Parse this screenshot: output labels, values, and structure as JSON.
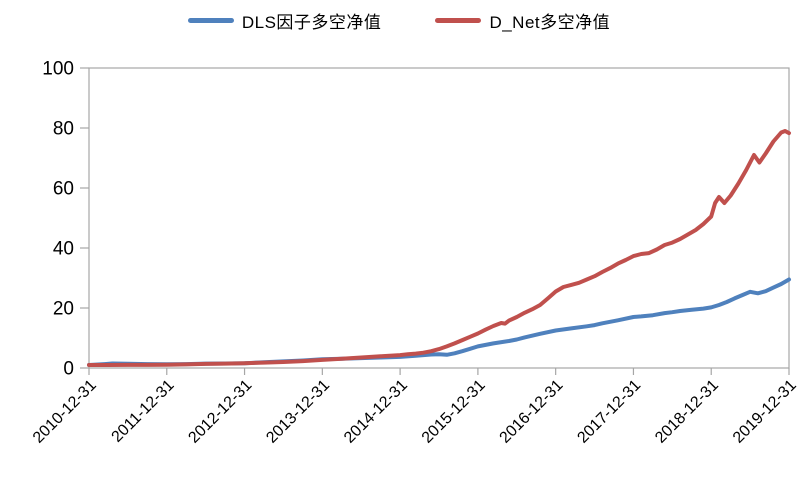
{
  "legend": {
    "items": [
      {
        "label": "DLS因子多空净值",
        "color": "#4F81BD"
      },
      {
        "label": "D_Net多空净值",
        "color": "#C0504D"
      }
    ]
  },
  "colors": {
    "axis": "#A6A6A6",
    "tick_text": "#000000",
    "background": "#FFFFFF"
  },
  "chart_data": {
    "type": "line",
    "title": "",
    "xlabel": "",
    "ylabel": "",
    "grid": false,
    "legend_position": "top-center",
    "ylim": [
      0,
      100
    ],
    "y_ticks": [
      0,
      20,
      40,
      60,
      80,
      100
    ],
    "x_tick_labels": [
      "2010-12-31",
      "2011-12-31",
      "2012-12-31",
      "2013-12-31",
      "2014-12-31",
      "2015-12-31",
      "2016-12-31",
      "2017-12-31",
      "2018-12-31",
      "2019-12-31"
    ],
    "x_unit": "years since 2010-12-31",
    "series": [
      {
        "name": "DLS因子多空净值",
        "color": "#4F81BD",
        "points": [
          [
            0,
            1.0
          ],
          [
            0.2,
            1.3
          ],
          [
            0.3,
            1.5
          ],
          [
            0.5,
            1.4
          ],
          [
            0.75,
            1.3
          ],
          [
            1.0,
            1.25
          ],
          [
            1.25,
            1.3
          ],
          [
            1.5,
            1.45
          ],
          [
            1.75,
            1.5
          ],
          [
            2.0,
            1.6
          ],
          [
            2.25,
            1.9
          ],
          [
            2.5,
            2.2
          ],
          [
            2.75,
            2.5
          ],
          [
            3.0,
            2.9
          ],
          [
            3.25,
            3.1
          ],
          [
            3.5,
            3.3
          ],
          [
            3.75,
            3.5
          ],
          [
            4.0,
            3.7
          ],
          [
            4.2,
            4.1
          ],
          [
            4.4,
            4.5
          ],
          [
            4.5,
            4.6
          ],
          [
            4.6,
            4.4
          ],
          [
            4.7,
            4.9
          ],
          [
            4.8,
            5.6
          ],
          [
            4.9,
            6.4
          ],
          [
            5.0,
            7.2
          ],
          [
            5.2,
            8.2
          ],
          [
            5.4,
            9.0
          ],
          [
            5.5,
            9.5
          ],
          [
            5.6,
            10.2
          ],
          [
            5.8,
            11.4
          ],
          [
            6.0,
            12.5
          ],
          [
            6.2,
            13.2
          ],
          [
            6.4,
            13.9
          ],
          [
            6.5,
            14.3
          ],
          [
            6.6,
            14.9
          ],
          [
            6.8,
            15.9
          ],
          [
            7.0,
            17.0
          ],
          [
            7.1,
            17.2
          ],
          [
            7.25,
            17.6
          ],
          [
            7.4,
            18.3
          ],
          [
            7.5,
            18.6
          ],
          [
            7.6,
            19.0
          ],
          [
            7.75,
            19.4
          ],
          [
            7.9,
            19.8
          ],
          [
            8.0,
            20.2
          ],
          [
            8.1,
            21.0
          ],
          [
            8.2,
            22.0
          ],
          [
            8.3,
            23.2
          ],
          [
            8.4,
            24.3
          ],
          [
            8.5,
            25.4
          ],
          [
            8.6,
            24.9
          ],
          [
            8.7,
            25.6
          ],
          [
            8.8,
            26.8
          ],
          [
            8.9,
            28.0
          ],
          [
            9.0,
            29.5
          ]
        ]
      },
      {
        "name": "D_Net多空净值",
        "color": "#C0504D",
        "points": [
          [
            0,
            1.0
          ],
          [
            0.25,
            1.0
          ],
          [
            0.5,
            1.05
          ],
          [
            0.75,
            1.05
          ],
          [
            1.0,
            1.1
          ],
          [
            1.25,
            1.2
          ],
          [
            1.5,
            1.35
          ],
          [
            1.75,
            1.45
          ],
          [
            2.0,
            1.6
          ],
          [
            2.25,
            1.8
          ],
          [
            2.5,
            2.0
          ],
          [
            2.75,
            2.3
          ],
          [
            3.0,
            2.7
          ],
          [
            3.25,
            3.1
          ],
          [
            3.5,
            3.5
          ],
          [
            3.75,
            3.9
          ],
          [
            4.0,
            4.3
          ],
          [
            4.1,
            4.6
          ],
          [
            4.2,
            4.8
          ],
          [
            4.3,
            5.1
          ],
          [
            4.4,
            5.6
          ],
          [
            4.5,
            6.3
          ],
          [
            4.6,
            7.2
          ],
          [
            4.7,
            8.2
          ],
          [
            4.8,
            9.3
          ],
          [
            4.9,
            10.4
          ],
          [
            5.0,
            11.5
          ],
          [
            5.1,
            12.8
          ],
          [
            5.2,
            14.0
          ],
          [
            5.3,
            15.0
          ],
          [
            5.35,
            14.8
          ],
          [
            5.4,
            15.8
          ],
          [
            5.5,
            17.0
          ],
          [
            5.6,
            18.4
          ],
          [
            5.7,
            19.6
          ],
          [
            5.8,
            21.0
          ],
          [
            5.9,
            23.2
          ],
          [
            6.0,
            25.5
          ],
          [
            6.1,
            27.0
          ],
          [
            6.2,
            27.7
          ],
          [
            6.3,
            28.4
          ],
          [
            6.4,
            29.5
          ],
          [
            6.5,
            30.6
          ],
          [
            6.6,
            32.0
          ],
          [
            6.7,
            33.3
          ],
          [
            6.8,
            34.8
          ],
          [
            6.9,
            36.0
          ],
          [
            7.0,
            37.3
          ],
          [
            7.1,
            38.0
          ],
          [
            7.2,
            38.3
          ],
          [
            7.3,
            39.5
          ],
          [
            7.4,
            41.0
          ],
          [
            7.5,
            41.8
          ],
          [
            7.6,
            43.0
          ],
          [
            7.7,
            44.5
          ],
          [
            7.8,
            46.0
          ],
          [
            7.9,
            48.0
          ],
          [
            8.0,
            50.5
          ],
          [
            8.05,
            55.0
          ],
          [
            8.1,
            57.0
          ],
          [
            8.17,
            55.0
          ],
          [
            8.25,
            57.5
          ],
          [
            8.35,
            61.5
          ],
          [
            8.45,
            66.0
          ],
          [
            8.55,
            71.0
          ],
          [
            8.62,
            68.5
          ],
          [
            8.7,
            71.5
          ],
          [
            8.8,
            75.5
          ],
          [
            8.9,
            78.5
          ],
          [
            8.95,
            79.0
          ],
          [
            9.0,
            78.3
          ]
        ]
      }
    ]
  }
}
